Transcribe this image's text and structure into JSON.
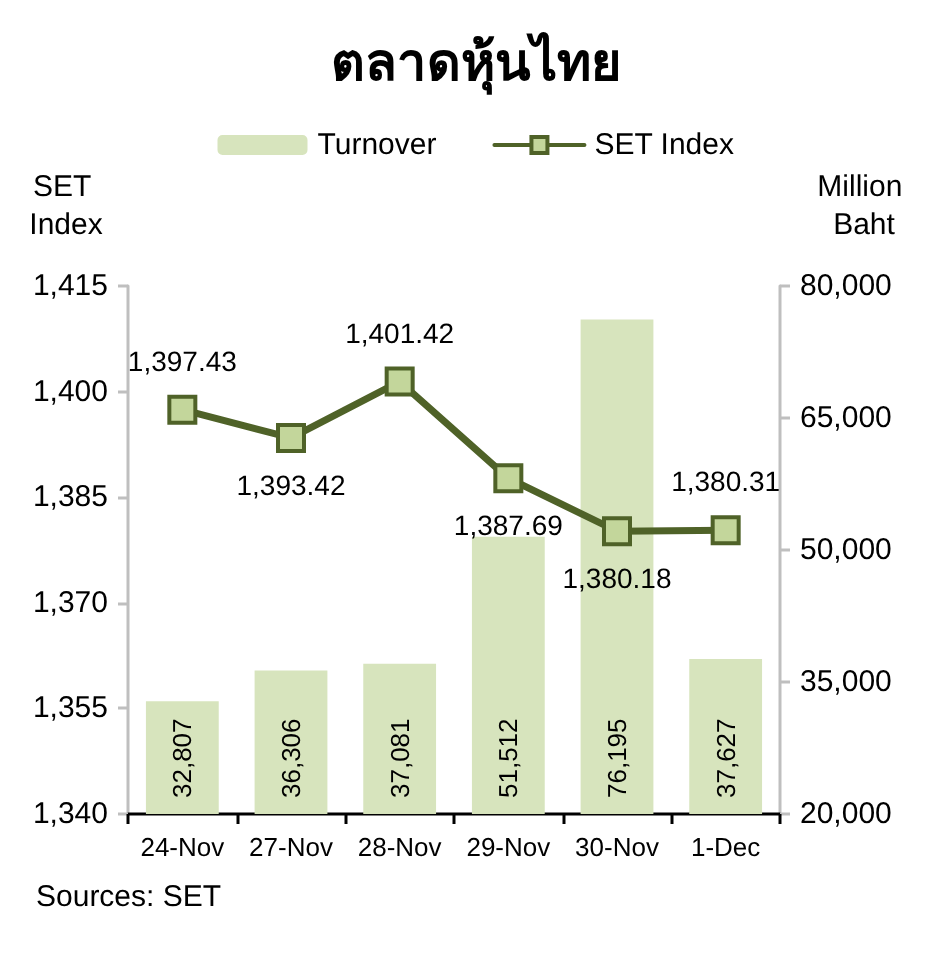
{
  "chart_data": {
    "type": "bar",
    "title": "ตลาดหุ้นไทย",
    "ylabel": "SET Index",
    "y2label": "Million Baht",
    "categories": [
      "24-Nov",
      "27-Nov",
      "28-Nov",
      "29-Nov",
      "30-Nov",
      "1-Dec"
    ],
    "series": [
      {
        "name": "Turnover",
        "axis": "y2",
        "color": "#d7e4bd",
        "values": [
          32807,
          36306,
          37081,
          51512,
          76195,
          37627
        ],
        "value_labels": [
          "32,807",
          "36,306",
          "37,081",
          "51,512",
          "76,195",
          "37,627"
        ]
      },
      {
        "name": "SET Index",
        "type": "line",
        "color": "#4f6228",
        "values": [
          1397.43,
          1393.42,
          1401.42,
          1387.69,
          1380.18,
          1380.31
        ],
        "value_labels": [
          "1,397.43",
          "1,393.42",
          "1,401.42",
          "1,387.69",
          "1,380.18",
          "1,380.31"
        ]
      }
    ],
    "ylim": [
      1340,
      1415
    ],
    "yticks": [
      {
        "value": 1340,
        "label": "1,340"
      },
      {
        "value": 1355,
        "label": "1,355"
      },
      {
        "value": 1370,
        "label": "1,370"
      },
      {
        "value": 1385,
        "label": "1,385"
      },
      {
        "value": 1400,
        "label": "1,400"
      },
      {
        "value": 1415,
        "label": "1,415"
      }
    ],
    "y2lim": [
      20000,
      80000
    ],
    "y2ticks": [
      {
        "value": 20000,
        "label": "20,000"
      },
      {
        "value": 35000,
        "label": "35,000"
      },
      {
        "value": 50000,
        "label": "50,000"
      },
      {
        "value": 65000,
        "label": "65,000"
      },
      {
        "value": 80000,
        "label": "80,000"
      }
    ],
    "legend": "top",
    "marker": "square",
    "annotations": [
      "Sources: SET"
    ]
  }
}
